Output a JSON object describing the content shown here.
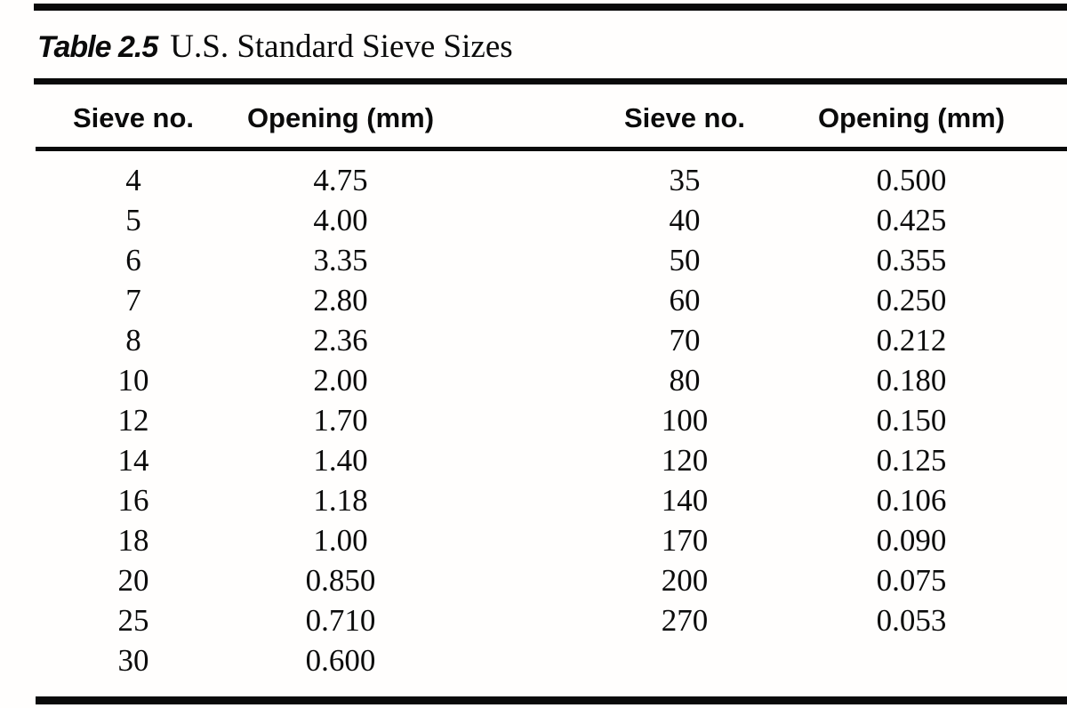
{
  "title": {
    "label": "Table 2.5",
    "text": "U.S. Standard Sieve Sizes"
  },
  "table": {
    "headers": [
      "Sieve no.",
      "Opening (mm)",
      "Sieve no.",
      "Opening (mm)"
    ],
    "left_rows": [
      {
        "sieve_no": "4",
        "opening_mm": "4.75"
      },
      {
        "sieve_no": "5",
        "opening_mm": "4.00"
      },
      {
        "sieve_no": "6",
        "opening_mm": "3.35"
      },
      {
        "sieve_no": "7",
        "opening_mm": "2.80"
      },
      {
        "sieve_no": "8",
        "opening_mm": "2.36"
      },
      {
        "sieve_no": "10",
        "opening_mm": "2.00"
      },
      {
        "sieve_no": "12",
        "opening_mm": "1.70"
      },
      {
        "sieve_no": "14",
        "opening_mm": "1.40"
      },
      {
        "sieve_no": "16",
        "opening_mm": "1.18"
      },
      {
        "sieve_no": "18",
        "opening_mm": "1.00"
      },
      {
        "sieve_no": "20",
        "opening_mm": "0.850"
      },
      {
        "sieve_no": "25",
        "opening_mm": "0.710"
      },
      {
        "sieve_no": "30",
        "opening_mm": "0.600"
      }
    ],
    "right_rows": [
      {
        "sieve_no": "35",
        "opening_mm": "0.500"
      },
      {
        "sieve_no": "40",
        "opening_mm": "0.425"
      },
      {
        "sieve_no": "50",
        "opening_mm": "0.355"
      },
      {
        "sieve_no": "60",
        "opening_mm": "0.250"
      },
      {
        "sieve_no": "70",
        "opening_mm": "0.212"
      },
      {
        "sieve_no": "80",
        "opening_mm": "0.180"
      },
      {
        "sieve_no": "100",
        "opening_mm": "0.150"
      },
      {
        "sieve_no": "120",
        "opening_mm": "0.125"
      },
      {
        "sieve_no": "140",
        "opening_mm": "0.106"
      },
      {
        "sieve_no": "170",
        "opening_mm": "0.090"
      },
      {
        "sieve_no": "200",
        "opening_mm": "0.075"
      },
      {
        "sieve_no": "270",
        "opening_mm": "0.053"
      }
    ]
  },
  "colors": {
    "background": "#fffefd",
    "text": "#0b0b0b",
    "rule": "#0a0a0a"
  }
}
